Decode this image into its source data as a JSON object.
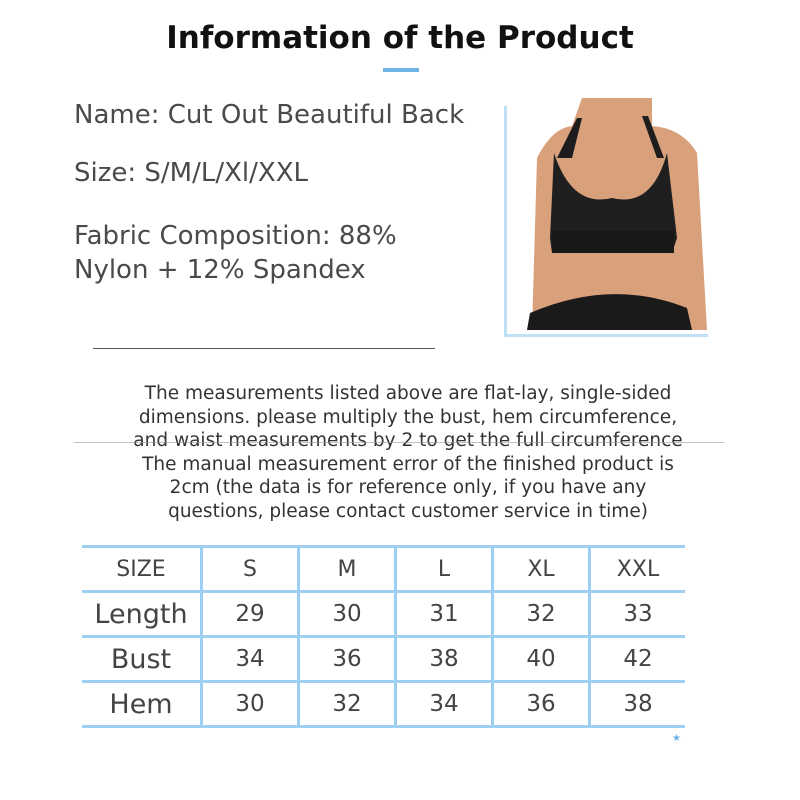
{
  "title": "Information of the Product",
  "info": {
    "name": "Name: Cut Out Beautiful Back",
    "size": "Size: S/M/L/Xl/XXL",
    "fabric_line1": "Fabric Composition: 88%",
    "fabric_line2": "Nylon + 12% Spandex"
  },
  "note": {
    "lines": [
      "The measurements listed above are flat-lay, single-sided",
      "dimensions. please multiply the bust, hem circumference,",
      "and waist measurements by 2 to get the full circumference",
      "The manual measurement error of the finished product is",
      "2cm (the data is for reference only, if you have any",
      "questions, please contact customer service in time)"
    ]
  },
  "size_table": {
    "header": [
      "SIZE",
      "S",
      "M",
      "L",
      "XL",
      "XXL"
    ],
    "rows": [
      [
        "Length",
        "29",
        "30",
        "31",
        "32",
        "33"
      ],
      [
        "Bust",
        "34",
        "36",
        "38",
        "40",
        "42"
      ],
      [
        "Hem",
        "30",
        "32",
        "34",
        "36",
        "38"
      ]
    ]
  },
  "colors": {
    "accent": "#6fb3e6",
    "table_lines": "#9ccff2",
    "text": "#444444"
  }
}
